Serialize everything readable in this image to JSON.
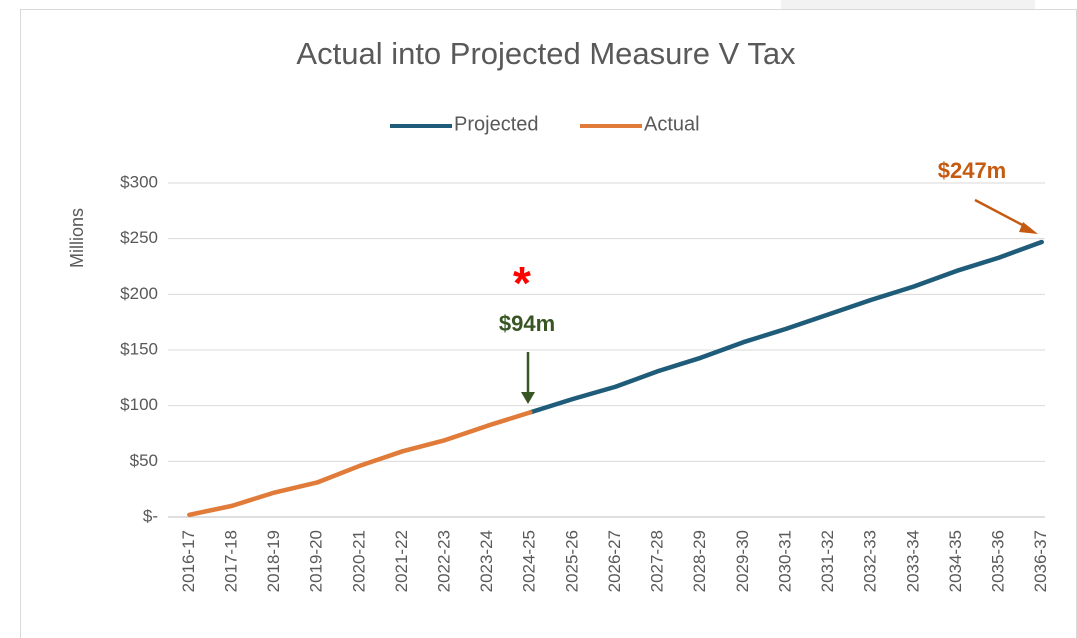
{
  "chart_data": {
    "type": "line",
    "title": "Actual into Projected Measure V Tax",
    "y_label": "Millions",
    "categories": [
      "2016-17",
      "2017-18",
      "2018-19",
      "2019-20",
      "2020-21",
      "2021-22",
      "2022-23",
      "2023-24",
      "2024-25",
      "2025-26",
      "2026-27",
      "2027-28",
      "2028-29",
      "2029-30",
      "2030-31",
      "2031-32",
      "2032-33",
      "2033-34",
      "2034-35",
      "2035-36",
      "2036-37"
    ],
    "series": [
      {
        "name": "Projected",
        "color": "#1f5c7a",
        "values": [
          null,
          null,
          null,
          null,
          null,
          null,
          null,
          null,
          94,
          106,
          117,
          131,
          143,
          157,
          169,
          182,
          195,
          207,
          221,
          233,
          247
        ]
      },
      {
        "name": "Actual",
        "color": "#e07b39",
        "values": [
          2,
          10,
          22,
          31,
          46,
          59,
          69,
          82,
          94,
          null,
          null,
          null,
          null,
          null,
          null,
          null,
          null,
          null,
          null,
          null,
          null
        ]
      }
    ],
    "ylim": [
      0,
      300
    ],
    "yticks": [
      {
        "value": 0,
        "label": "$-"
      },
      {
        "value": 50,
        "label": "$50"
      },
      {
        "value": 100,
        "label": "$100"
      },
      {
        "value": 150,
        "label": "$150"
      },
      {
        "value": 200,
        "label": "$200"
      },
      {
        "value": 250,
        "label": "$250"
      },
      {
        "value": 300,
        "label": "$300"
      }
    ],
    "grid": true,
    "legend": "top",
    "annotations": [
      "*",
      "$94m",
      "$247m"
    ]
  }
}
